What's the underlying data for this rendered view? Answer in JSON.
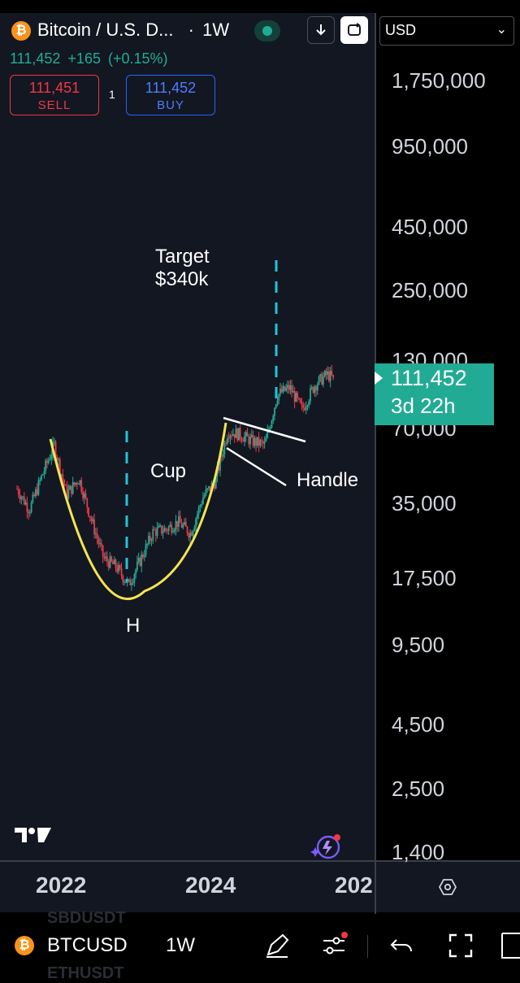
{
  "header": {
    "symbol_title": "Bitcoin / U.S. D...",
    "interval_dot": "·",
    "interval": "1W",
    "last_price": "111,452",
    "change": "+165",
    "change_pct": "(+0.15%)",
    "sell_price": "111,451",
    "sell_label": "SELL",
    "buy_price": "111,452",
    "buy_label": "BUY",
    "spread": "1",
    "currency": "USD",
    "btc_glyph": "₿"
  },
  "price_axis": {
    "ticks": [
      "1,750,000",
      "950,000",
      "450,000",
      "250,000",
      "130,000",
      "70,000",
      "35,000",
      "17,500",
      "9,500",
      "4,500",
      "2,500",
      "1,400"
    ],
    "current_price": "111,452",
    "countdown": "3d 22h"
  },
  "time_axis": {
    "labels": [
      "2022",
      "2024",
      "202"
    ]
  },
  "annotations": {
    "target_line1": "Target",
    "target_line2": "$340k",
    "cup": "Cup",
    "handle": "Handle",
    "low": "H"
  },
  "bottom_toolbar": {
    "symbol": "BTCUSD",
    "interval": "1W",
    "ghost_top": "SBDUSDT",
    "ghost_bottom": "ETHUSDT"
  },
  "colors": {
    "up": "#22ab94",
    "down": "#f23645",
    "cup_line": "#f5e350",
    "dashed_line": "#22c3d6",
    "accent_buy": "#2962ff",
    "bitcoin": "#f7931a"
  },
  "chart_data": {
    "type": "candlestick",
    "scale": "log",
    "interval": "1W",
    "x_range": [
      "2021-05",
      "2025-08"
    ],
    "y_ticks": [
      1750000,
      950000,
      450000,
      250000,
      130000,
      70000,
      35000,
      17500,
      9500,
      4500,
      2500,
      1400
    ],
    "close_path": [
      [
        "2021-05",
        40000
      ],
      [
        "2021-07",
        33000
      ],
      [
        "2021-09",
        45000
      ],
      [
        "2021-11",
        60000
      ],
      [
        "2022-01",
        38000
      ],
      [
        "2022-03",
        44000
      ],
      [
        "2022-05",
        30000
      ],
      [
        "2022-07",
        21000
      ],
      [
        "2022-09",
        19500
      ],
      [
        "2022-11",
        16500
      ],
      [
        "2023-01",
        21000
      ],
      [
        "2023-03",
        27000
      ],
      [
        "2023-05",
        27500
      ],
      [
        "2023-07",
        29500
      ],
      [
        "2023-09",
        26500
      ],
      [
        "2023-11",
        37000
      ],
      [
        "2024-01",
        43000
      ],
      [
        "2024-03",
        68000
      ],
      [
        "2024-05",
        66000
      ],
      [
        "2024-07",
        62000
      ],
      [
        "2024-09",
        60000
      ],
      [
        "2024-11",
        95000
      ],
      [
        "2025-01",
        102000
      ],
      [
        "2025-03",
        83000
      ],
      [
        "2025-05",
        104000
      ],
      [
        "2025-07",
        115000
      ],
      [
        "2025-08",
        111452
      ]
    ],
    "last_value": 111452,
    "grid": false,
    "patterns": [
      {
        "type": "cup",
        "label": "Cup"
      },
      {
        "type": "handle",
        "label": "Handle"
      },
      {
        "type": "target",
        "label": "Target $340k",
        "value": 340000
      },
      {
        "type": "low",
        "label": "H"
      }
    ]
  }
}
